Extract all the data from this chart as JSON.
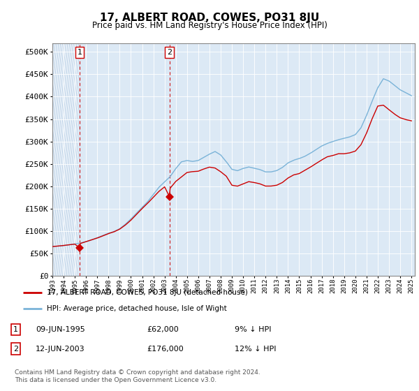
{
  "title": "17, ALBERT ROAD, COWES, PO31 8JU",
  "subtitle": "Price paid vs. HM Land Registry's House Price Index (HPI)",
  "legend_line1": "17, ALBERT ROAD, COWES, PO31 8JU (detached house)",
  "legend_line2": "HPI: Average price, detached house, Isle of Wight",
  "transaction1_date": "09-JUN-1995",
  "transaction1_price": "£62,000",
  "transaction1_hpi": "9% ↓ HPI",
  "transaction2_date": "12-JUN-2003",
  "transaction2_price": "£176,000",
  "transaction2_hpi": "12% ↓ HPI",
  "footer": "Contains HM Land Registry data © Crown copyright and database right 2024.\nThis data is licensed under the Open Government Licence v3.0.",
  "hpi_color": "#7ab3d8",
  "price_color": "#cc0000",
  "vline_color": "#cc0000",
  "bg_color": "#dce9f5",
  "hatch_color": "#b0c8e0",
  "grid_color": "#a0b8d0",
  "ylim": [
    0,
    520000
  ],
  "yticks": [
    0,
    50000,
    100000,
    150000,
    200000,
    250000,
    300000,
    350000,
    400000,
    450000,
    500000
  ],
  "transaction1_x": 1995.44,
  "transaction1_y": 62000,
  "transaction2_x": 2003.44,
  "transaction2_y": 176000,
  "xlim_start": 1993.0,
  "xlim_end": 2025.3
}
